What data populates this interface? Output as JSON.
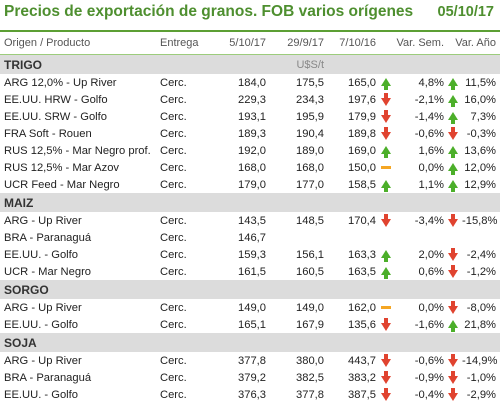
{
  "title": "Precios de exportación de granos. FOB varios orígenes",
  "date": "05/10/17",
  "columns": {
    "product": "Origen / Producto",
    "entrega": "Entrega",
    "d1": "5/10/17",
    "d2": "29/9/17",
    "d3": "7/10/16",
    "varsem": "Var. Sem.",
    "varanio": "Var. Año"
  },
  "unit": "U$S/t",
  "colors": {
    "brand": "#4e8f2f",
    "up": "#4caf2a",
    "down": "#e0432f",
    "flat": "#f5a623",
    "section_bg": "#dcdcdc"
  },
  "sections": [
    {
      "name": "TRIGO",
      "rows": [
        {
          "product": "ARG 12,0% - Up River",
          "entrega": "Cerc.",
          "d1": "184,0",
          "d2": "175,5",
          "d3": "165,0",
          "a1": "up",
          "varsem": "4,8%",
          "a2": "up",
          "varanio": "11,5%"
        },
        {
          "product": "EE.UU. HRW - Golfo",
          "entrega": "Cerc.",
          "d1": "229,3",
          "d2": "234,3",
          "d3": "197,6",
          "a1": "down",
          "varsem": "-2,1%",
          "a2": "up",
          "varanio": "16,0%"
        },
        {
          "product": "EE.UU. SRW - Golfo",
          "entrega": "Cerc.",
          "d1": "193,1",
          "d2": "195,9",
          "d3": "179,9",
          "a1": "down",
          "varsem": "-1,4%",
          "a2": "up",
          "varanio": "7,3%"
        },
        {
          "product": "FRA Soft - Rouen",
          "entrega": "Cerc.",
          "d1": "189,3",
          "d2": "190,4",
          "d3": "189,8",
          "a1": "down",
          "varsem": "-0,6%",
          "a2": "down",
          "varanio": "-0,3%"
        },
        {
          "product": "RUS 12,5% - Mar Negro prof.",
          "entrega": "Cerc.",
          "d1": "192,0",
          "d2": "189,0",
          "d3": "169,0",
          "a1": "up",
          "varsem": "1,6%",
          "a2": "up",
          "varanio": "13,6%"
        },
        {
          "product": "RUS 12,5% - Mar Azov",
          "entrega": "Cerc.",
          "d1": "168,0",
          "d2": "168,0",
          "d3": "150,0",
          "a1": "flat",
          "varsem": "0,0%",
          "a2": "up",
          "varanio": "12,0%"
        },
        {
          "product": "UCR Feed - Mar Negro",
          "entrega": "Cerc.",
          "d1": "179,0",
          "d2": "177,0",
          "d3": "158,5",
          "a1": "up",
          "varsem": "1,1%",
          "a2": "up",
          "varanio": "12,9%"
        }
      ]
    },
    {
      "name": "MAIZ",
      "rows": [
        {
          "product": "ARG - Up River",
          "entrega": "Cerc.",
          "d1": "143,5",
          "d2": "148,5",
          "d3": "170,4",
          "a1": "down",
          "varsem": "-3,4%",
          "a2": "down",
          "varanio": "-15,8%"
        },
        {
          "product": "BRA - Paranaguá",
          "entrega": "Cerc.",
          "d1": "146,7",
          "d2": "",
          "d3": "",
          "a1": "",
          "varsem": "",
          "a2": "",
          "varanio": ""
        },
        {
          "product": "EE.UU. - Golfo",
          "entrega": "Cerc.",
          "d1": "159,3",
          "d2": "156,1",
          "d3": "163,3",
          "a1": "up",
          "varsem": "2,0%",
          "a2": "down",
          "varanio": "-2,4%"
        },
        {
          "product": "UCR - Mar Negro",
          "entrega": "Cerc.",
          "d1": "161,5",
          "d2": "160,5",
          "d3": "163,5",
          "a1": "up",
          "varsem": "0,6%",
          "a2": "down",
          "varanio": "-1,2%"
        }
      ]
    },
    {
      "name": "SORGO",
      "rows": [
        {
          "product": "ARG - Up River",
          "entrega": "Cerc.",
          "d1": "149,0",
          "d2": "149,0",
          "d3": "162,0",
          "a1": "flat",
          "varsem": "0,0%",
          "a2": "down",
          "varanio": "-8,0%"
        },
        {
          "product": "EE.UU. - Golfo",
          "entrega": "Cerc.",
          "d1": "165,1",
          "d2": "167,9",
          "d3": "135,6",
          "a1": "down",
          "varsem": "-1,6%",
          "a2": "up",
          "varanio": "21,8%"
        }
      ]
    },
    {
      "name": "SOJA",
      "rows": [
        {
          "product": "ARG - Up River",
          "entrega": "Cerc.",
          "d1": "377,8",
          "d2": "380,0",
          "d3": "443,7",
          "a1": "down",
          "varsem": "-0,6%",
          "a2": "down",
          "varanio": "-14,9%"
        },
        {
          "product": "BRA - Paranaguá",
          "entrega": "Cerc.",
          "d1": "379,2",
          "d2": "382,5",
          "d3": "383,2",
          "a1": "down",
          "varsem": "-0,9%",
          "a2": "down",
          "varanio": "-1,0%"
        },
        {
          "product": "EE.UU. - Golfo",
          "entrega": "Cerc.",
          "d1": "376,3",
          "d2": "377,8",
          "d3": "387,5",
          "a1": "down",
          "varsem": "-0,4%",
          "a2": "down",
          "varanio": "-2,9%"
        }
      ]
    }
  ]
}
